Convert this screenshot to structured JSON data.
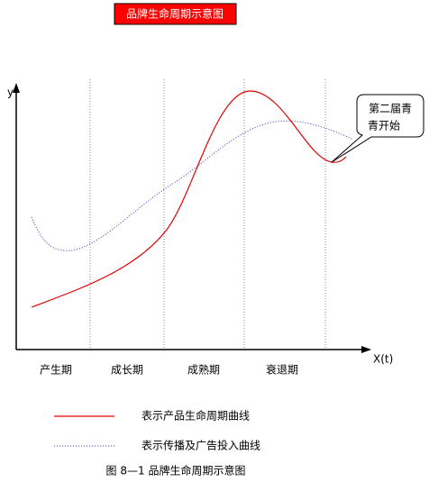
{
  "title": "品牌生命周期示意图",
  "axes": {
    "y_label": "y",
    "x_label": "X(t)"
  },
  "stages": [
    "产生期",
    "成长期",
    "成熟期",
    "衰退期"
  ],
  "callout": {
    "lines": [
      "第二届青",
      "青开始"
    ]
  },
  "legend": {
    "items": [
      "表示产品生命周期曲线",
      "表示传播及广告投入曲线"
    ]
  },
  "caption": "图 8—1 品牌生命周期示意图"
}
